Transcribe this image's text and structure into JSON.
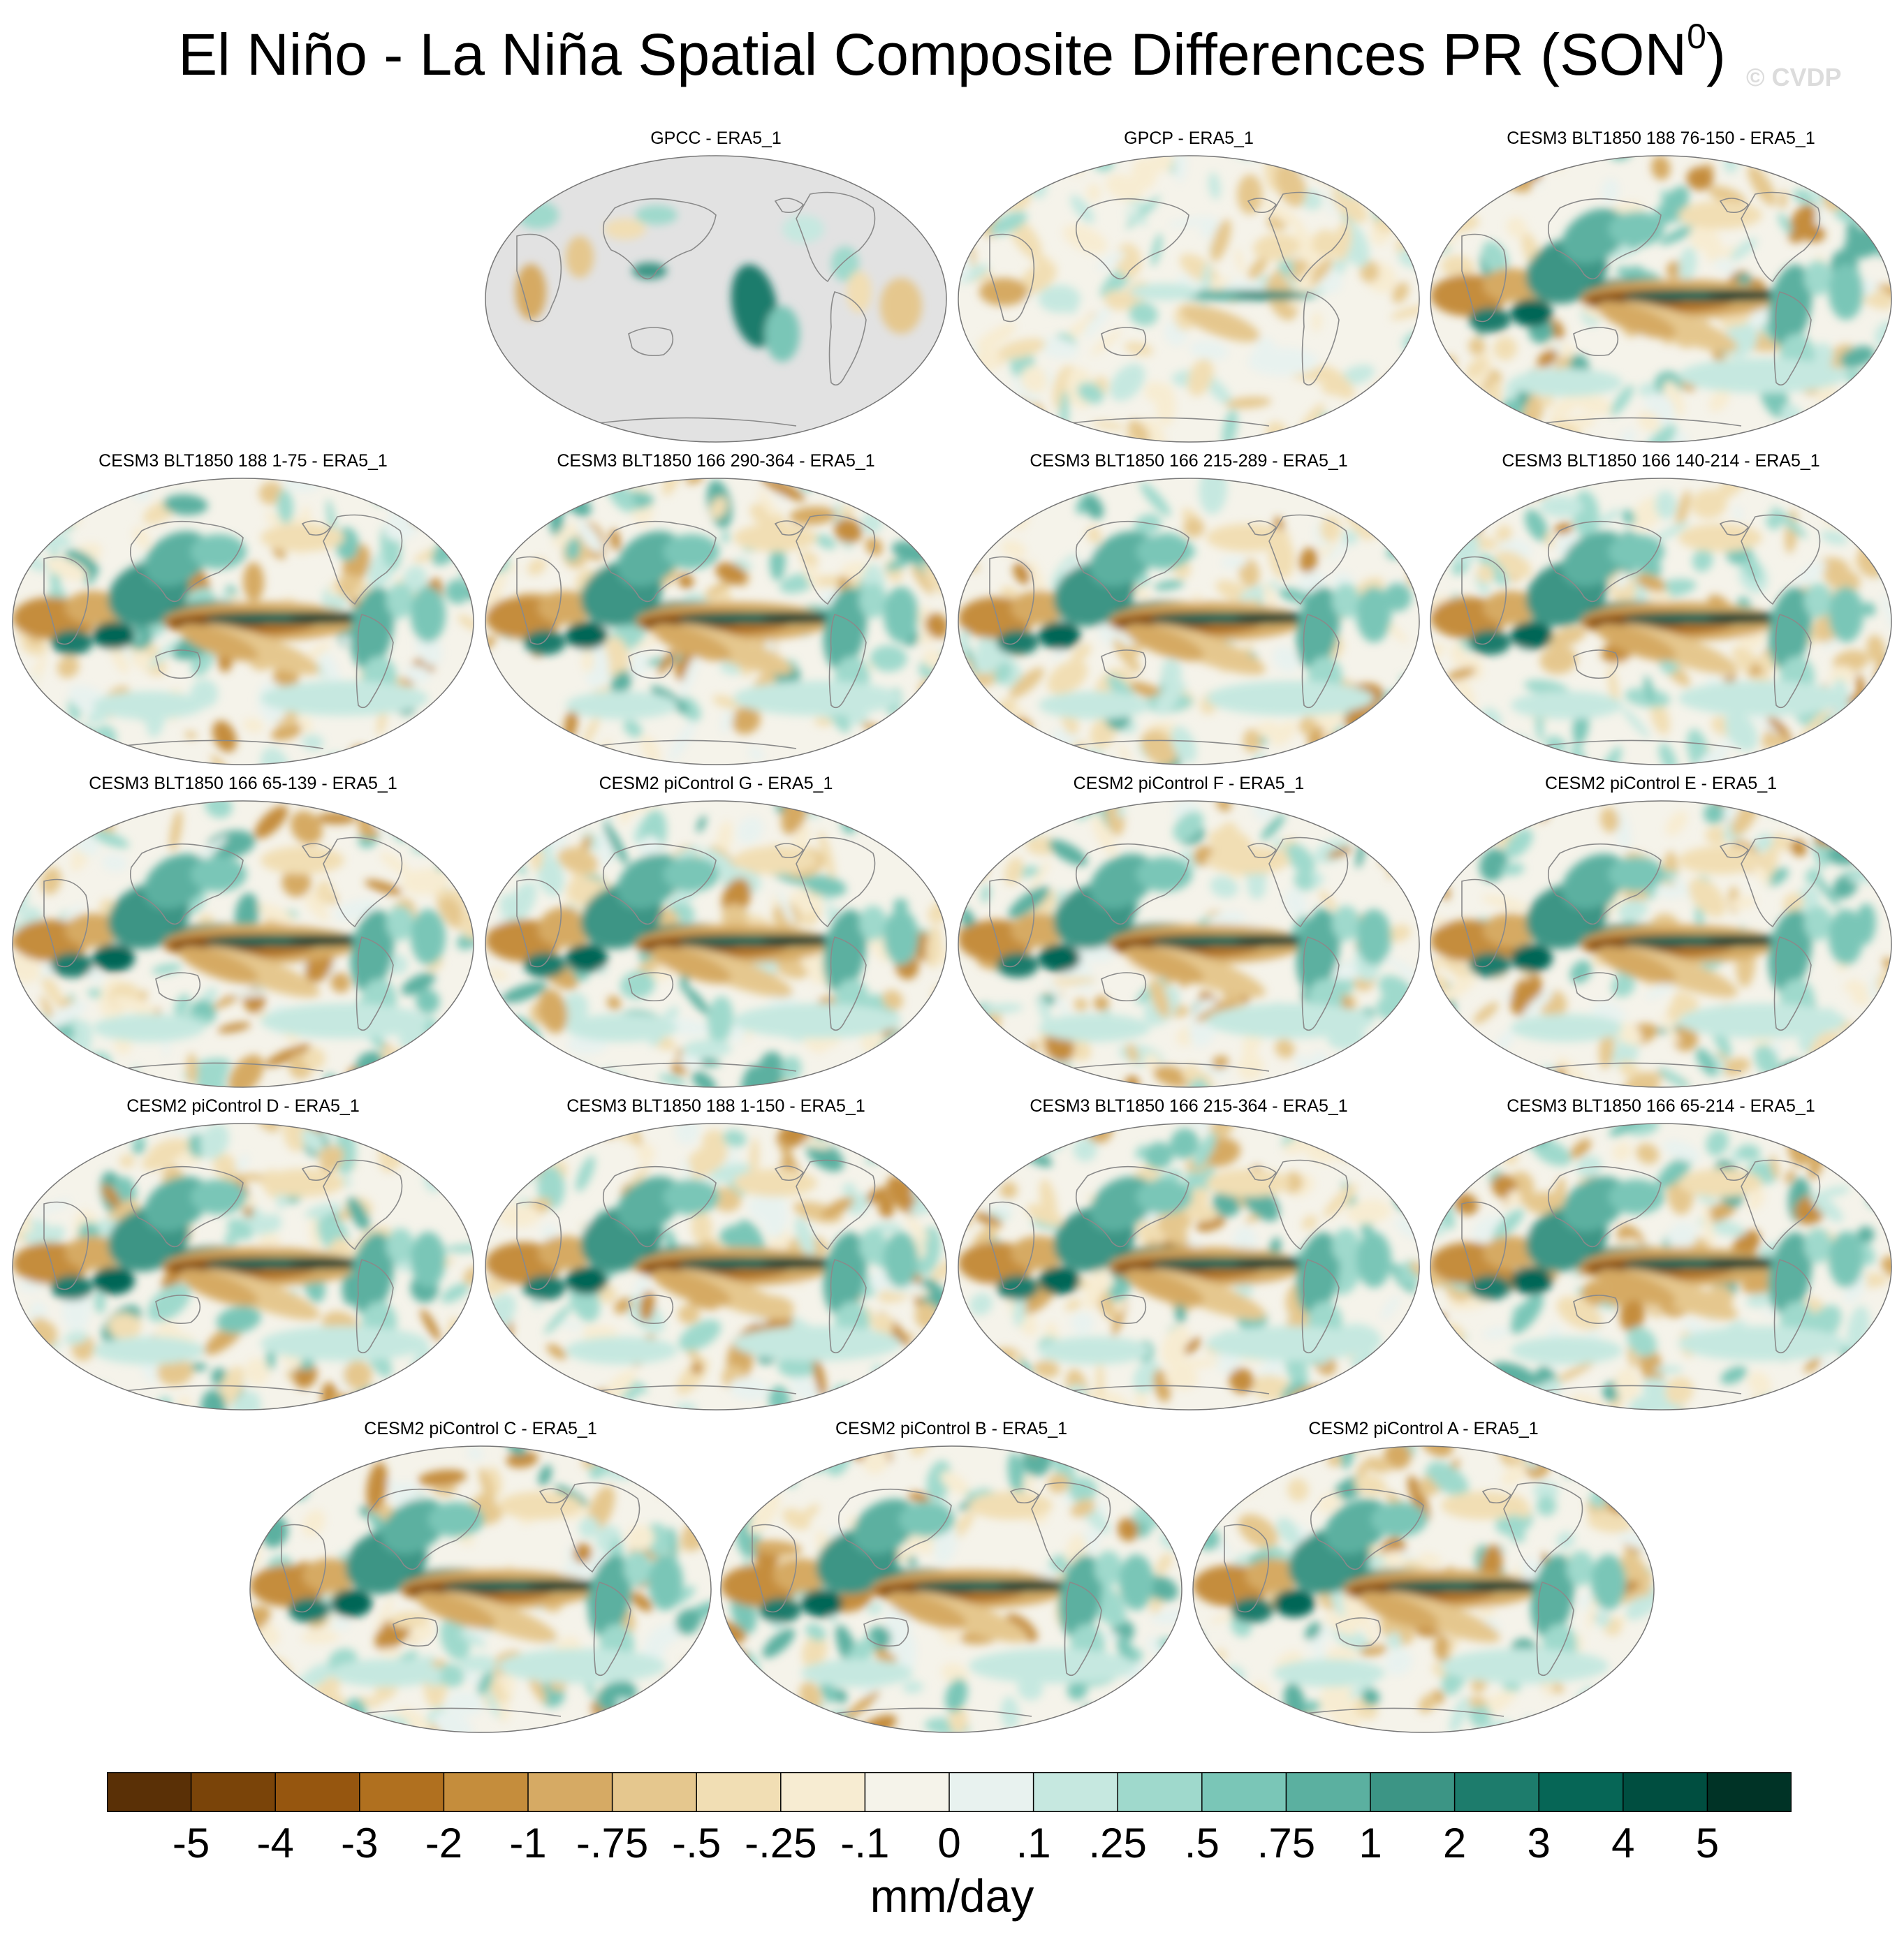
{
  "title": {
    "main": "El Niño - La Niña Spatial Composite Differences PR (SON",
    "sup": "0",
    "close": ")"
  },
  "watermark": "© CVDP",
  "panels": [
    {
      "title": "GPCC - ERA5_1",
      "style": "land",
      "seed": 1
    },
    {
      "title": "GPCP - ERA5_1",
      "style": "weak",
      "seed": 2
    },
    {
      "title": "CESM3 BLT1850 188 76-150 - ERA5_1",
      "style": "strong",
      "seed": 3
    },
    {
      "title": "CESM3 BLT1850 188 1-75 - ERA5_1",
      "style": "strong",
      "seed": 4
    },
    {
      "title": "CESM3 BLT1850 166 290-364 - ERA5_1",
      "style": "strong",
      "seed": 5
    },
    {
      "title": "CESM3 BLT1850 166 215-289 - ERA5_1",
      "style": "strong",
      "seed": 6
    },
    {
      "title": "CESM3 BLT1850 166 140-214 - ERA5_1",
      "style": "strong",
      "seed": 7
    },
    {
      "title": "CESM3 BLT1850 166 65-139 - ERA5_1",
      "style": "strong",
      "seed": 8
    },
    {
      "title": "CESM2 piControl G - ERA5_1",
      "style": "strong",
      "seed": 9
    },
    {
      "title": "CESM2 piControl F - ERA5_1",
      "style": "strong",
      "seed": 10
    },
    {
      "title": "CESM2 piControl E - ERA5_1",
      "style": "strong",
      "seed": 11
    },
    {
      "title": "CESM2 piControl D - ERA5_1",
      "style": "strong",
      "seed": 12
    },
    {
      "title": "CESM3 BLT1850 188 1-150 - ERA5_1",
      "style": "strong",
      "seed": 13
    },
    {
      "title": "CESM3 BLT1850 166 215-364 - ERA5_1",
      "style": "strong",
      "seed": 14
    },
    {
      "title": "CESM3 BLT1850 166 65-214 - ERA5_1",
      "style": "strong",
      "seed": 15
    },
    {
      "title": "CESM2 piControl C - ERA5_1",
      "style": "strong",
      "seed": 16
    },
    {
      "title": "CESM2 piControl B - ERA5_1",
      "style": "strong",
      "seed": 17
    },
    {
      "title": "CESM2 piControl A - ERA5_1",
      "style": "strong",
      "seed": 18
    }
  ],
  "colorbar": {
    "colors": [
      "#5a3006",
      "#7a4409",
      "#96560f",
      "#b0701f",
      "#c58d3c",
      "#d6aa64",
      "#e5c78e",
      "#f1deb4",
      "#f7ecd2",
      "#f5f3ea",
      "#e8f2ef",
      "#c6e8e0",
      "#9fd9cc",
      "#7ac6b7",
      "#5bb0a0",
      "#3c9585",
      "#1d7c6c",
      "#066656",
      "#004e40",
      "#003326"
    ],
    "labels": [
      "-5",
      "-4",
      "-3",
      "-2",
      "-1",
      "-.75",
      "-.5",
      "-.25",
      "-.1",
      "0",
      ".1",
      ".25",
      ".5",
      ".75",
      "1",
      "2",
      "3",
      "4",
      "5"
    ],
    "units": "mm/day"
  }
}
